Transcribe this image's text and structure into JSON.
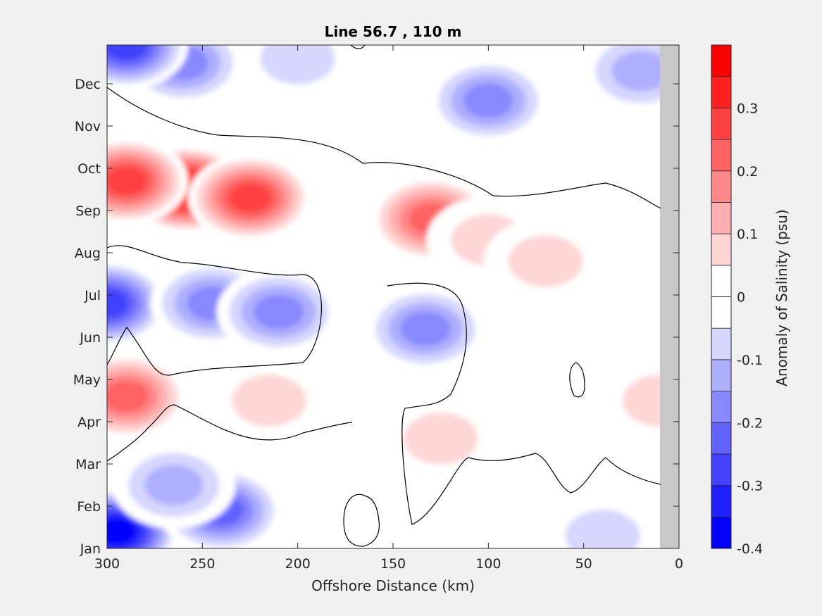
{
  "chart_data": {
    "type": "heatmap",
    "plot_style": "filled contour",
    "title": "Line 56.7 , 110 m",
    "xlabel": "Offshore Distance (km)",
    "ylabel": "",
    "x_direction": "reversed",
    "xlim": [
      300,
      0
    ],
    "xticks": [
      300,
      250,
      200,
      150,
      100,
      50,
      0
    ],
    "y_categories": [
      "Jan",
      "Feb",
      "Mar",
      "Apr",
      "May",
      "Jun",
      "Jul",
      "Aug",
      "Sep",
      "Oct",
      "Nov",
      "Dec"
    ],
    "colorbar": {
      "label": "Anomaly of Salinity (psu)",
      "levels": [
        -0.4,
        -0.35,
        -0.3,
        -0.25,
        -0.2,
        -0.15,
        -0.1,
        -0.05,
        0,
        0.05,
        0.1,
        0.15,
        0.2,
        0.25,
        0.3,
        0.35,
        0.4
      ],
      "ticks": [
        -0.4,
        -0.3,
        -0.2,
        -0.1,
        0,
        0.1,
        0.2,
        0.3
      ],
      "colors": [
        "#0000ff",
        "#2020ff",
        "#4141ff",
        "#6262ff",
        "#8888ff",
        "#afafff",
        "#d6d6ff",
        "#ffffff",
        "#ffffff",
        "#ffd6d6",
        "#ffafaf",
        "#ff8888",
        "#ff6262",
        "#ff4141",
        "#ff2020",
        "#ff0000"
      ]
    },
    "masked_color": "#c8c8c8",
    "masked_x_range": [
      0,
      10
    ],
    "zero_contour": "black",
    "grid": false,
    "features": [
      {
        "x": 258,
        "month": 9.5,
        "value": 0.38
      },
      {
        "x": 225,
        "month": 9.3,
        "value": 0.3
      },
      {
        "x": 290,
        "month": 9.7,
        "value": 0.28
      },
      {
        "x": 130,
        "month": 8.8,
        "value": 0.24
      },
      {
        "x": 100,
        "month": 8.3,
        "value": 0.1
      },
      {
        "x": 70,
        "month": 7.8,
        "value": 0.08
      },
      {
        "x": 290,
        "month": 4.6,
        "value": 0.25
      },
      {
        "x": 215,
        "month": 4.5,
        "value": 0.12
      },
      {
        "x": 125,
        "month": 3.6,
        "value": 0.09
      },
      {
        "x": 10,
        "month": 4.5,
        "value": 0.08
      },
      {
        "x": 300,
        "month": 6.8,
        "value": -0.28
      },
      {
        "x": 245,
        "month": 6.8,
        "value": -0.2
      },
      {
        "x": 210,
        "month": 6.6,
        "value": -0.2
      },
      {
        "x": 133,
        "month": 6.2,
        "value": -0.22
      },
      {
        "x": 295,
        "month": 1.4,
        "value": -0.4
      },
      {
        "x": 240,
        "month": 1.9,
        "value": -0.27
      },
      {
        "x": 265,
        "month": 2.5,
        "value": -0.15
      },
      {
        "x": 100,
        "month": 11.6,
        "value": -0.2
      },
      {
        "x": 260,
        "month": 12.5,
        "value": -0.2
      },
      {
        "x": 290,
        "month": 12.9,
        "value": -0.3
      },
      {
        "x": 20,
        "month": 12.3,
        "value": -0.13
      },
      {
        "x": 40,
        "month": 1.3,
        "value": -0.1
      },
      {
        "x": 200,
        "month": 12.6,
        "value": -0.1
      }
    ]
  }
}
